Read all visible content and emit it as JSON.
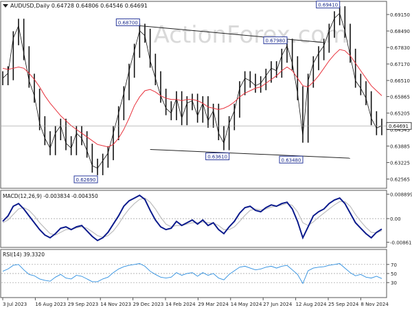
{
  "header": {
    "symbol_line": "AUDUSD,Daily  0.64728 0.64806 0.64546 0.64691"
  },
  "watermark": "ActionForex.com",
  "colors": {
    "price": "#111111",
    "sma": "#e8323c",
    "macd_main": "#0a1a8c",
    "macd_signal": "#bdbdbd",
    "rsi": "#2e8fe0",
    "grid": "#9a9a9a",
    "watermark": "#d9d9d9"
  },
  "chart_data": [
    {
      "type": "line",
      "name": "price",
      "ylim": [
        0.6225,
        0.6962
      ],
      "yticks": [
        "0.69150",
        "0.68490",
        "0.67830",
        "0.67170",
        "0.66510",
        "0.65865",
        "0.65205",
        "0.64545",
        "0.63885",
        "0.63225",
        "0.62565"
      ],
      "last_price": "0.64691",
      "x_labels": [
        "3 Jul 2023",
        "16 Aug 2023",
        "29 Sep 2023",
        "14 Nov 2023",
        "29 Dec 2023",
        "14 Feb 2024",
        "29 Mar 2024",
        "14 May 2024",
        "27 Jun 2024",
        "12 Aug 2024",
        "25 Sep 2024",
        "8 Nov 2024"
      ],
      "close": [
        0.666,
        0.668,
        0.682,
        0.687,
        0.676,
        0.665,
        0.659,
        0.648,
        0.642,
        0.638,
        0.644,
        0.647,
        0.64,
        0.638,
        0.644,
        0.642,
        0.637,
        0.631,
        0.63,
        0.633,
        0.636,
        0.644,
        0.652,
        0.66,
        0.669,
        0.677,
        0.685,
        0.683,
        0.673,
        0.666,
        0.659,
        0.654,
        0.652,
        0.658,
        0.65,
        0.656,
        0.657,
        0.651,
        0.656,
        0.649,
        0.653,
        0.644,
        0.64,
        0.648,
        0.653,
        0.662,
        0.666,
        0.665,
        0.663,
        0.664,
        0.667,
        0.67,
        0.669,
        0.675,
        0.679,
        0.672,
        0.66,
        0.643,
        0.665,
        0.672,
        0.676,
        0.679,
        0.685,
        0.69,
        0.692,
        0.685,
        0.675,
        0.665,
        0.662,
        0.658,
        0.65,
        0.646,
        0.647
      ],
      "sma_label": "",
      "sma": [
        0.67,
        0.6695,
        0.67,
        0.6705,
        0.67,
        0.668,
        0.6655,
        0.6625,
        0.659,
        0.656,
        0.6535,
        0.651,
        0.649,
        0.647,
        0.6455,
        0.644,
        0.6425,
        0.641,
        0.6395,
        0.639,
        0.6385,
        0.6395,
        0.642,
        0.6455,
        0.65,
        0.655,
        0.6585,
        0.661,
        0.6615,
        0.6605,
        0.659,
        0.658,
        0.6575,
        0.6575,
        0.657,
        0.6575,
        0.6575,
        0.657,
        0.656,
        0.6545,
        0.654,
        0.6535,
        0.654,
        0.655,
        0.6565,
        0.6585,
        0.66,
        0.661,
        0.662,
        0.6625,
        0.664,
        0.6655,
        0.667,
        0.669,
        0.6705,
        0.669,
        0.666,
        0.663,
        0.6625,
        0.6645,
        0.667,
        0.67,
        0.673,
        0.6755,
        0.6775,
        0.677,
        0.675,
        0.672,
        0.669,
        0.666,
        0.663,
        0.661,
        0.659
      ],
      "annotations": [
        {
          "label": "0.68700",
          "x_index": 26,
          "value": 0.687
        },
        {
          "label": "0.62690",
          "x_index": 18,
          "value": 0.6269
        },
        {
          "label": "0.63610",
          "x_index": 43,
          "value": 0.6361
        },
        {
          "label": "0.67980",
          "x_index": 54,
          "value": 0.6798
        },
        {
          "label": "0.63480",
          "x_index": 57,
          "value": 0.6348
        },
        {
          "label": "0.69410",
          "x_index": 64,
          "value": 0.6941
        }
      ],
      "trendlines": [
        {
          "from": [
            26,
            0.687
          ],
          "to": [
            61,
            0.6803
          ]
        },
        {
          "from": [
            28,
            0.6375
          ],
          "to": [
            66,
            0.634
          ]
        }
      ]
    },
    {
      "type": "line",
      "name": "MACD(12,26,9) -0.003834 -0.004350",
      "ylim": [
        -0.01,
        0.0098
      ],
      "yticks": [
        "0.008899",
        "0.00",
        "-0.008612"
      ],
      "series": [
        {
          "name": "macd",
          "values": [
            -0.001,
            0.001,
            0.0045,
            0.0055,
            0.0035,
            0.001,
            -0.0015,
            -0.004,
            -0.006,
            -0.007,
            -0.0055,
            -0.0035,
            -0.003,
            -0.004,
            -0.003,
            -0.0025,
            -0.0045,
            -0.0065,
            -0.008,
            -0.007,
            -0.005,
            -0.002,
            0.001,
            0.0045,
            0.0065,
            0.0075,
            0.0085,
            0.007,
            0.003,
            -0.0005,
            -0.003,
            -0.004,
            -0.0035,
            -0.001,
            -0.0025,
            -0.0015,
            -0.0005,
            -0.002,
            -0.0005,
            -0.0025,
            -0.0015,
            -0.004,
            -0.0055,
            -0.003,
            -0.001,
            0.002,
            0.004,
            0.0045,
            0.003,
            0.0025,
            0.004,
            0.005,
            0.0045,
            0.0055,
            0.006,
            0.0035,
            -0.001,
            -0.007,
            -0.003,
            0.001,
            0.0025,
            0.0035,
            0.0055,
            0.0068,
            0.0075,
            0.0055,
            0.002,
            -0.0015,
            -0.0035,
            -0.0055,
            -0.007,
            -0.005,
            -0.0038
          ]
        },
        {
          "name": "signal",
          "values": [
            -0.0015,
            -0.0005,
            0.0015,
            0.0035,
            0.004,
            0.003,
            0.001,
            -0.0015,
            -0.0035,
            -0.0055,
            -0.006,
            -0.005,
            -0.004,
            -0.0038,
            -0.0034,
            -0.003,
            -0.0035,
            -0.0048,
            -0.0062,
            -0.0068,
            -0.0062,
            -0.0045,
            -0.002,
            0.001,
            0.0035,
            0.0055,
            0.007,
            0.0075,
            0.006,
            0.0035,
            0.0005,
            -0.002,
            -0.003,
            -0.0025,
            -0.0025,
            -0.002,
            -0.0015,
            -0.0015,
            -0.0012,
            -0.0015,
            -0.0016,
            -0.0025,
            -0.004,
            -0.004,
            -0.003,
            -0.001,
            0.0012,
            0.003,
            0.0035,
            0.0032,
            0.0035,
            0.0042,
            0.0045,
            0.005,
            0.0055,
            0.0048,
            0.0025,
            -0.0015,
            -0.0025,
            -0.0012,
            0.0005,
            0.002,
            0.0035,
            0.005,
            0.0062,
            0.0062,
            0.0045,
            0.0015,
            -0.001,
            -0.0032,
            -0.005,
            -0.0052,
            -0.0044
          ]
        }
      ]
    },
    {
      "type": "line",
      "name": "RSI(14) 39.3320",
      "ylim": [
        0,
        100
      ],
      "yticks": [
        "70",
        "50",
        "30"
      ],
      "values": [
        55,
        60,
        68,
        70,
        58,
        48,
        45,
        38,
        35,
        33,
        42,
        48,
        40,
        38,
        46,
        44,
        38,
        32,
        32,
        38,
        42,
        52,
        60,
        65,
        68,
        70,
        72,
        66,
        55,
        48,
        42,
        40,
        42,
        52,
        46,
        50,
        52,
        44,
        52,
        46,
        50,
        40,
        36,
        48,
        56,
        64,
        66,
        62,
        58,
        60,
        64,
        66,
        62,
        66,
        68,
        58,
        48,
        28,
        56,
        62,
        64,
        65,
        68,
        70,
        72,
        62,
        52,
        45,
        48,
        42,
        40,
        44,
        39
      ]
    }
  ]
}
